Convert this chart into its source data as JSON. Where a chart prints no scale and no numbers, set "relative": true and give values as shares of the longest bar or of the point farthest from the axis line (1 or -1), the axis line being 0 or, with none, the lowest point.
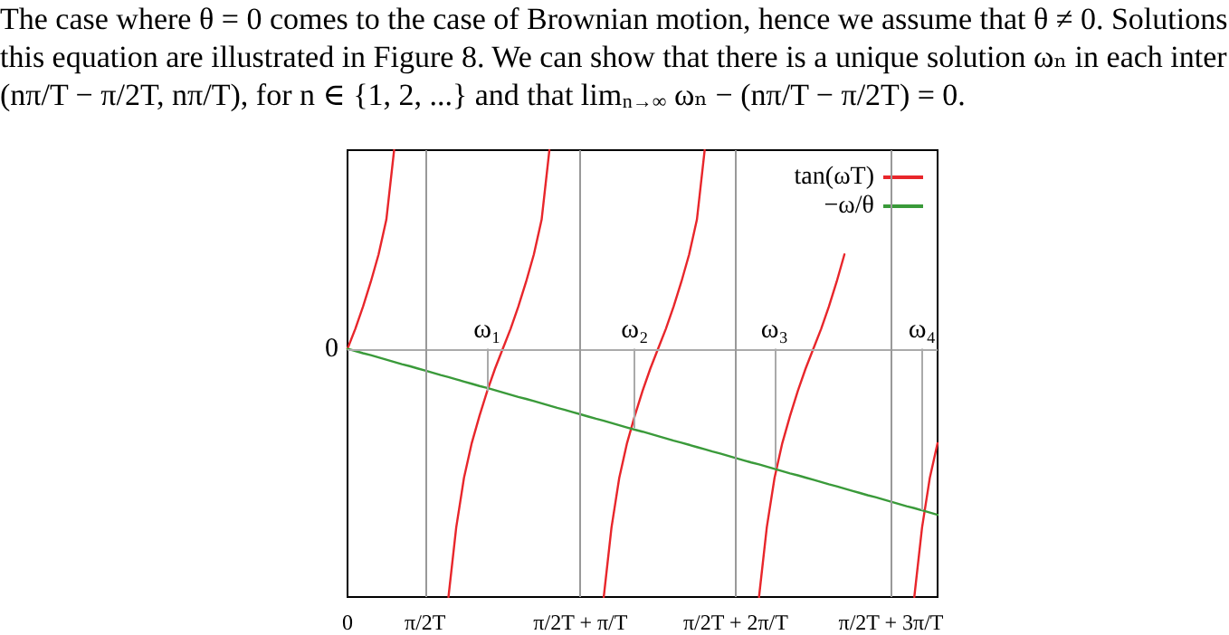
{
  "chart_data": {
    "type": "line",
    "relative": true,
    "annotations": [
      "The case where θ = 0 comes to the case of Brownian motion, hence we assume that θ ≠ 0. Solutions",
      "this equation are illustrated in Figure 8. We can show that there is a unique solution ωₙ in each inter",
      "(nπ/T − π/2T, nπ/T), for n ∈ {1, 2, ...} and that lim$_{n→∞}$ ωₙ − (nπ/T − π/2T) = 0.",
      {
        "text": "ω₁",
        "y": -0.17
      },
      {
        "text": "ω₂",
        "y": -0.32
      },
      {
        "text": "ω₃",
        "y": -0.48
      },
      {
        "text": "ω₄",
        "y": -0.65
      }
    ],
    "categories": [
      "0",
      null,
      null,
      null,
      null,
      null,
      null,
      null,
      null,
      null,
      "π/2T",
      null,
      null,
      null,
      null,
      null,
      null,
      null,
      null,
      null,
      null,
      null,
      null,
      null,
      null,
      null,
      null,
      null,
      null,
      null,
      "π/2T + π/T",
      null,
      null,
      null,
      null,
      null,
      null,
      null,
      null,
      null,
      null,
      null,
      null,
      null,
      null,
      null,
      null,
      null,
      null,
      null,
      "π/2T + 2π/T",
      null,
      null,
      null,
      null,
      null,
      null,
      null,
      null,
      null,
      null,
      null,
      null,
      null,
      null,
      null,
      null,
      null,
      null,
      null,
      "π/2T + 3π/T",
      null,
      null,
      null,
      null,
      null,
      null
    ],
    "series": [
      {
        "name": "tan(ωT)",
        "color": "#e8262b",
        "values": [
          0,
          0.08,
          0.17,
          0.27,
          0.38,
          0.52,
          0.8,
          null,
          null,
          null,
          null,
          null,
          null,
          -1,
          -0.72,
          -0.52,
          -0.38,
          -0.27,
          -0.17,
          -0.08,
          0,
          0.08,
          0.17,
          0.27,
          0.38,
          0.52,
          0.8,
          null,
          null,
          null,
          null,
          null,
          null,
          -1,
          -0.72,
          -0.52,
          -0.38,
          -0.27,
          -0.17,
          -0.08,
          0,
          0.08,
          0.17,
          0.27,
          0.38,
          0.52,
          0.8,
          null,
          null,
          null,
          null,
          null,
          null,
          -1,
          -0.72,
          -0.52,
          -0.38,
          -0.27,
          -0.17,
          -0.08,
          0,
          0.08,
          0.17,
          0.27,
          0.38,
          null,
          null,
          null,
          null,
          null,
          null,
          null,
          null,
          -1,
          -0.72,
          -0.52,
          -0.38
        ]
      },
      {
        "name": "−ω/θ",
        "color": "#3a9a3a",
        "values": [
          0,
          -0.009,
          -0.018,
          -0.026,
          -0.035,
          -0.044,
          -0.053,
          -0.062,
          -0.07,
          -0.079,
          -0.088,
          -0.097,
          -0.106,
          -0.114,
          -0.123,
          -0.132,
          -0.141,
          -0.15,
          -0.158,
          -0.167,
          -0.176,
          -0.185,
          -0.194,
          -0.202,
          -0.211,
          -0.22,
          -0.229,
          -0.238,
          -0.246,
          -0.255,
          -0.264,
          -0.273,
          -0.282,
          -0.29,
          -0.299,
          -0.308,
          -0.317,
          -0.326,
          -0.334,
          -0.343,
          -0.352,
          -0.361,
          -0.37,
          -0.378,
          -0.387,
          -0.396,
          -0.405,
          -0.414,
          -0.422,
          -0.431,
          -0.44,
          -0.449,
          -0.458,
          -0.466,
          -0.475,
          -0.484,
          -0.493,
          -0.502,
          -0.51,
          -0.519,
          -0.528,
          -0.537,
          -0.546,
          -0.554,
          -0.563,
          -0.572,
          -0.581,
          -0.59,
          -0.598,
          -0.607,
          -0.616,
          -0.625,
          -0.634,
          -0.642,
          -0.651,
          -0.66,
          -0.669
        ]
      }
    ],
    "ref_lines": [
      {
        "axis": "y",
        "value": 0,
        "label": "0",
        "color": "#aaaaaa"
      },
      {
        "axis": "x",
        "value": "π/2T",
        "color": "#999999"
      },
      {
        "axis": "x",
        "value": "π/2T + π/T",
        "color": "#999999"
      },
      {
        "axis": "x",
        "value": "π/2T + 2π/T",
        "color": "#999999"
      },
      {
        "axis": "x",
        "value": "π/2T + 3π/T",
        "color": "#999999"
      }
    ],
    "legend": "top right",
    "marker": "none",
    "line_style": "solid"
  }
}
